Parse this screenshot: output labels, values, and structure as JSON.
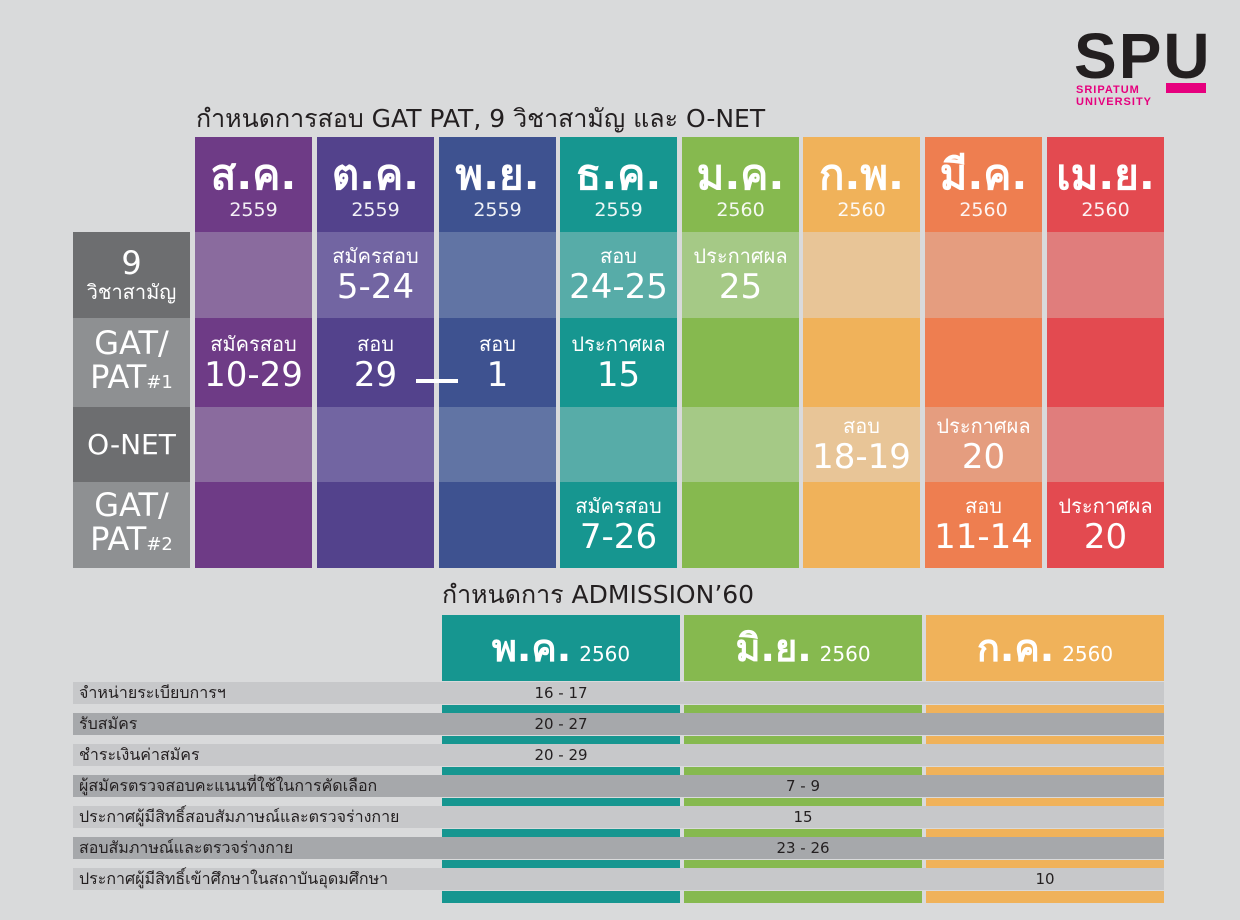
{
  "logo": {
    "word": "SPU",
    "sub_line1": "SRIPATUM",
    "sub_line2": "UNIVERSITY"
  },
  "colors": {
    "aug": "#6e3b86",
    "oct": "#53428c",
    "nov": "#3e5290",
    "dec": "#169690",
    "jan": "#86b94f",
    "feb": "#f0b25a",
    "mar": "#ee7e50",
    "apr": "#e34a50",
    "label_dark": "#6d6e70",
    "label_light": "#8e9092",
    "accent": "#e6007e"
  },
  "exam_title": "กำหนดการสอบ GAT PAT, 9 วิชาสามัญ และ O-NET",
  "months": [
    {
      "name": "ส.ค.",
      "year": "2559"
    },
    {
      "name": "ต.ค.",
      "year": "2559"
    },
    {
      "name": "พ.ย.",
      "year": "2559"
    },
    {
      "name": "ธ.ค.",
      "year": "2559"
    },
    {
      "name": "ม.ค.",
      "year": "2560"
    },
    {
      "name": "ก.พ.",
      "year": "2560"
    },
    {
      "name": "มี.ค.",
      "year": "2560"
    },
    {
      "name": "เม.ย.",
      "year": "2560"
    }
  ],
  "rows": {
    "nine": {
      "label_line1": "9",
      "label_line2": "วิชาสามัญ"
    },
    "gat1": {
      "label_line1": "GAT/",
      "label_line2": "PAT",
      "label_suffix": "#1"
    },
    "onet": {
      "label": "O-NET"
    },
    "gat2": {
      "label_line1": "GAT/",
      "label_line2": "PAT",
      "label_suffix": "#2"
    }
  },
  "events": {
    "nine_oct": {
      "top": "สมัครสอบ",
      "big": "5-24"
    },
    "nine_dec": {
      "top": "สอบ",
      "big": "24-25"
    },
    "nine_jan": {
      "top": "ประกาศผล",
      "big": "25"
    },
    "gat1_aug": {
      "top": "สมัครสอบ",
      "big": "10-29"
    },
    "gat1_oct": {
      "top": "สอบ",
      "big": "29"
    },
    "gat1_nov": {
      "top": "สอบ",
      "big": "1"
    },
    "gat1_dec": {
      "top": "ประกาศผล",
      "big": "15"
    },
    "onet_feb": {
      "top": "สอบ",
      "big": "18-19"
    },
    "onet_mar": {
      "top": "ประกาศผล",
      "big": "20"
    },
    "gat2_dec": {
      "top": "สมัครสอบ",
      "big": "7-26"
    },
    "gat2_mar": {
      "top": "สอบ",
      "big": "11-14"
    },
    "gat2_apr": {
      "top": "ประกาศผล",
      "big": "20"
    }
  },
  "admission_title": "กำหนดการ ADMISSION’60",
  "admission_months": [
    {
      "name": "พ.ค.",
      "year": "2560"
    },
    {
      "name": "มิ.ย.",
      "year": "2560"
    },
    {
      "name": "ก.ค.",
      "year": "2560"
    }
  ],
  "admission_rows": [
    {
      "label": "จำหน่ายระเบียบการฯ",
      "value": "16 - 17"
    },
    {
      "label": "รับสมัคร",
      "value": "20 - 27"
    },
    {
      "label": "ชำระเงินค่าสมัคร",
      "value": "20 - 29"
    },
    {
      "label": "ผู้สมัครตรวจสอบคะแนนที่ใช้ในการคัดเลือก",
      "value": "7 - 9"
    },
    {
      "label": "ประกาศผู้มีสิทธิ์สอบสัมภาษณ์และตรวจร่างกาย",
      "value": "15"
    },
    {
      "label": "สอบสัมภาษณ์และตรวจร่างกาย",
      "value": "23 - 26"
    },
    {
      "label": "ประกาศผู้มีสิทธิ์เข้าศึกษาในสถาบันอุดมศึกษา",
      "value": "10"
    }
  ]
}
